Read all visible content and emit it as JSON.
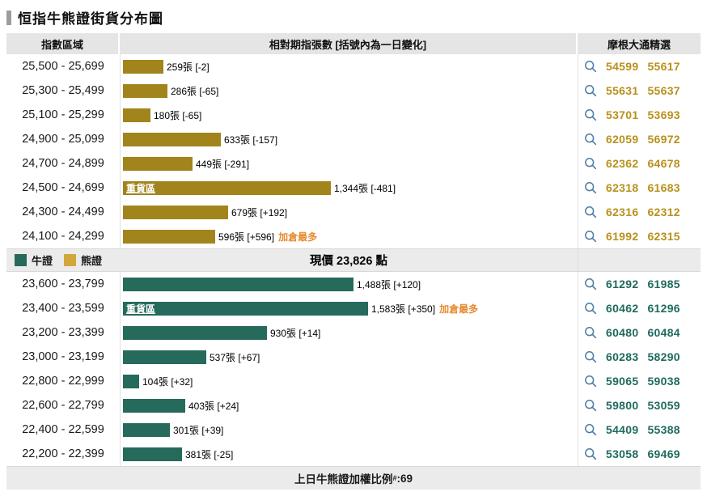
{
  "title": "恒指牛熊證街貨分布圖",
  "header": {
    "col_range": "指數區域",
    "col_bars": "相對期指張數 [括號內為一日變化]",
    "col_picks": "摩根大通精選"
  },
  "legend": {
    "bull": "牛證",
    "bear": "熊證"
  },
  "current_price": "現價 23,826 點",
  "labels": {
    "heavy_zone": "重貨區",
    "most_added": "加倉最多"
  },
  "footer": {
    "label": "上日牛熊證加權比例",
    "sup": "#",
    "separator": ": ",
    "value": "69"
  },
  "colors": {
    "bear_bar": "#a1841c",
    "bull_bar": "#266a5c",
    "legend_bear_swatch": "#d2a83c",
    "legend_bull_swatch": "#266a5c",
    "bear_code_text": "#b8911c",
    "bull_code_text": "#1f6a5e",
    "most_added_text": "#e78a2e",
    "search_icon": "#4a7ba6"
  },
  "sections": [
    {
      "type": "bear",
      "rows": [
        {
          "range": "25,500 - 25,699",
          "value": 259,
          "label": "259張 [-2]",
          "heavy": false,
          "most_added": false,
          "codes": [
            "54599",
            "55617"
          ]
        },
        {
          "range": "25,300 - 25,499",
          "value": 286,
          "label": "286張 [-65]",
          "heavy": false,
          "most_added": false,
          "codes": [
            "55631",
            "55637"
          ]
        },
        {
          "range": "25,100 - 25,299",
          "value": 180,
          "label": "180張 [-65]",
          "heavy": false,
          "most_added": false,
          "codes": [
            "53701",
            "53693"
          ]
        },
        {
          "range": "24,900 - 25,099",
          "value": 633,
          "label": "633張 [-157]",
          "heavy": false,
          "most_added": false,
          "codes": [
            "62059",
            "56972"
          ]
        },
        {
          "range": "24,700 - 24,899",
          "value": 449,
          "label": "449張 [-291]",
          "heavy": false,
          "most_added": false,
          "codes": [
            "62362",
            "64678"
          ]
        },
        {
          "range": "24,500 - 24,699",
          "value": 1344,
          "label": "1,344張 [-481]",
          "heavy": true,
          "most_added": false,
          "codes": [
            "62318",
            "61683"
          ]
        },
        {
          "range": "24,300 - 24,499",
          "value": 679,
          "label": "679張 [+192]",
          "heavy": false,
          "most_added": false,
          "codes": [
            "62316",
            "62312"
          ]
        },
        {
          "range": "24,100 - 24,299",
          "value": 596,
          "label": "596張 [+596]",
          "heavy": false,
          "most_added": true,
          "codes": [
            "61992",
            "62315"
          ]
        }
      ]
    },
    {
      "type": "bull",
      "rows": [
        {
          "range": "23,600 - 23,799",
          "value": 1488,
          "label": "1,488張 [+120]",
          "heavy": false,
          "most_added": false,
          "codes": [
            "61292",
            "61985"
          ]
        },
        {
          "range": "23,400 - 23,599",
          "value": 1583,
          "label": "1,583張 [+350]",
          "heavy": true,
          "most_added": true,
          "codes": [
            "60462",
            "61296"
          ]
        },
        {
          "range": "23,200 - 23,399",
          "value": 930,
          "label": "930張 [+14]",
          "heavy": false,
          "most_added": false,
          "codes": [
            "60480",
            "60484"
          ]
        },
        {
          "range": "23,000 - 23,199",
          "value": 537,
          "label": "537張 [+67]",
          "heavy": false,
          "most_added": false,
          "codes": [
            "60283",
            "58290"
          ]
        },
        {
          "range": "22,800 - 22,999",
          "value": 104,
          "label": "104張 [+32]",
          "heavy": false,
          "most_added": false,
          "codes": [
            "59065",
            "59038"
          ]
        },
        {
          "range": "22,600 - 22,799",
          "value": 403,
          "label": "403張 [+24]",
          "heavy": false,
          "most_added": false,
          "codes": [
            "59800",
            "53059"
          ]
        },
        {
          "range": "22,400 - 22,599",
          "value": 301,
          "label": "301張 [+39]",
          "heavy": false,
          "most_added": false,
          "codes": [
            "54409",
            "55388"
          ]
        },
        {
          "range": "22,200 - 22,399",
          "value": 381,
          "label": "381張 [-25]",
          "heavy": false,
          "most_added": false,
          "codes": [
            "53058",
            "69469"
          ]
        }
      ]
    }
  ],
  "chart_data": {
    "type": "bar",
    "orientation": "horizontal",
    "title": "恒指牛熊證街貨分布圖",
    "xlabel": "相對期指張數 [括號內為一日變化]",
    "series": [
      {
        "name": "熊證",
        "color": "#a1841c",
        "categories": [
          "25,500 - 25,699",
          "25,300 - 25,499",
          "25,100 - 25,299",
          "24,900 - 25,099",
          "24,700 - 24,899",
          "24,500 - 24,699",
          "24,300 - 24,499",
          "24,100 - 24,299"
        ],
        "values": [
          259,
          286,
          180,
          633,
          449,
          1344,
          679,
          596
        ],
        "day_change": [
          -2,
          -65,
          -65,
          -157,
          -291,
          -481,
          192,
          596
        ]
      },
      {
        "name": "牛證",
        "color": "#266a5c",
        "categories": [
          "23,600 - 23,799",
          "23,400 - 23,599",
          "23,200 - 23,399",
          "23,000 - 23,199",
          "22,800 - 22,999",
          "22,600 - 22,799",
          "22,400 - 22,599",
          "22,200 - 22,399"
        ],
        "values": [
          1488,
          1583,
          930,
          537,
          104,
          403,
          301,
          381
        ],
        "day_change": [
          120,
          350,
          14,
          67,
          32,
          24,
          39,
          -25
        ]
      }
    ],
    "annotations": {
      "current_price": 23826,
      "heavy_zone_bear": "24,500 - 24,699",
      "heavy_zone_bull": "23,400 - 23,599",
      "most_added_bear": "24,100 - 24,299",
      "most_added_bull": "23,400 - 23,599",
      "prev_day_weighted_ratio": 69
    },
    "legend_position": "middle-left",
    "grid": false
  }
}
